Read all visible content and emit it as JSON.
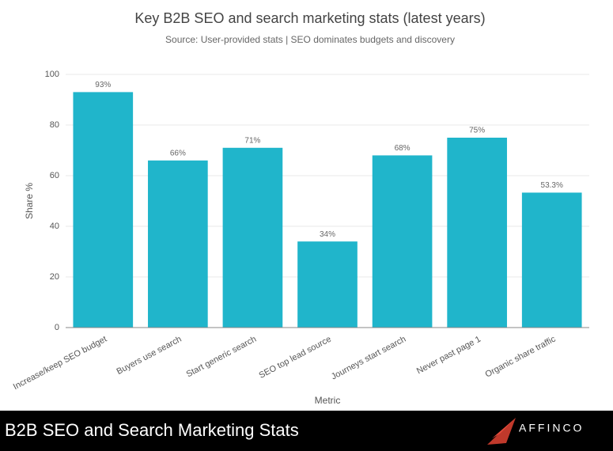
{
  "chart_data": {
    "type": "bar",
    "title": "Key B2B SEO and search marketing stats (latest years)",
    "subtitle": "Source: User-provided stats | SEO dominates budgets and discovery",
    "x_label": "Metric",
    "y_label": "Share %",
    "categories": [
      "Increase/keep SEO budget",
      "Buyers use search",
      "Start generic search",
      "SEO top lead source",
      "Journeys start search",
      "Never past page 1",
      "Organic share traffic"
    ],
    "values": [
      93,
      66,
      71,
      34,
      68,
      75,
      53.3
    ],
    "value_labels": [
      "93%",
      "66%",
      "71%",
      "34%",
      "68%",
      "75%",
      "53.3%"
    ],
    "color": "#20b5cb",
    "ylim": [
      0,
      100
    ],
    "yticks": [
      0,
      20,
      40,
      60,
      80,
      100
    ],
    "grid": true
  },
  "footer": {
    "title": "B2B SEO and Search Marketing Stats",
    "brand": "AFFINCO"
  }
}
